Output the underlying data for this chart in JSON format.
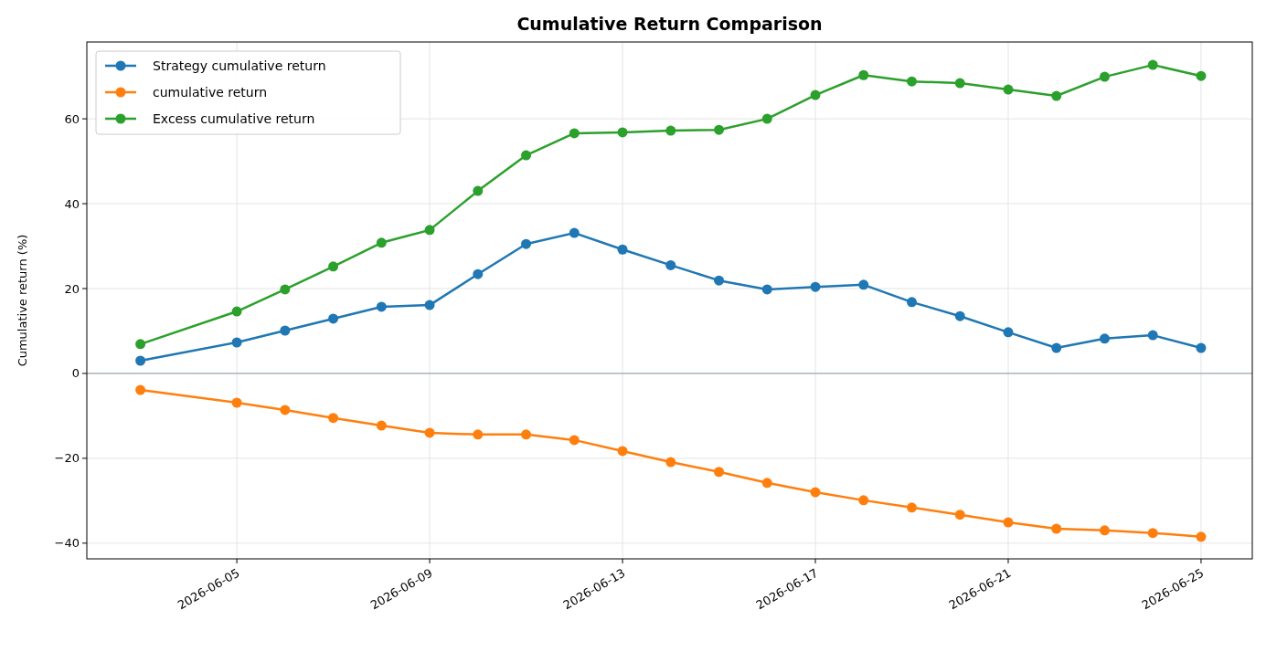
{
  "chart_data": {
    "type": "line",
    "title": "Cumulative Return Comparison",
    "ylabel": "Cumulative return (%)",
    "x": [
      "2026-06-03",
      "2026-06-05",
      "2026-06-06",
      "2026-06-07",
      "2026-06-08",
      "2026-06-09",
      "2026-06-10",
      "2026-06-11",
      "2026-06-12",
      "2026-06-13",
      "2026-06-14",
      "2026-06-15",
      "2026-06-16",
      "2026-06-17",
      "2026-06-18",
      "2026-06-19",
      "2026-06-20",
      "2026-06-21",
      "2026-06-22",
      "2026-06-23",
      "2026-06-24",
      "2026-06-25"
    ],
    "series": [
      {
        "name": "Strategy cumulative return",
        "color": "#1f77b4",
        "values": [
          3.0,
          7.3,
          10.1,
          12.9,
          15.7,
          16.1,
          23.4,
          30.5,
          33.1,
          29.2,
          25.5,
          21.9,
          19.8,
          20.4,
          20.9,
          16.8,
          13.5,
          9.7,
          6.0,
          8.2,
          9.0,
          6.0
        ]
      },
      {
        "name": "cumulative return",
        "color": "#ff7f0e",
        "values": [
          -3.9,
          -6.9,
          -8.6,
          -10.5,
          -12.3,
          -14.0,
          -14.4,
          -14.4,
          -15.7,
          -18.3,
          -20.9,
          -23.2,
          -25.8,
          -28.0,
          -29.9,
          -31.6,
          -33.3,
          -35.1,
          -36.6,
          -37.0,
          -37.6,
          -38.5
        ]
      },
      {
        "name": "Excess cumulative return",
        "color": "#2ca02c",
        "values": [
          6.9,
          14.6,
          19.8,
          25.2,
          30.8,
          33.8,
          43.0,
          51.4,
          56.6,
          56.8,
          57.2,
          57.4,
          60.0,
          65.6,
          70.3,
          68.8,
          68.4,
          66.9,
          65.4,
          69.9,
          72.7,
          70.1
        ]
      }
    ],
    "xlim": [
      "2026-06-01T21:20",
      "2026-06-26T01:30"
    ],
    "xticks": [
      {
        "value": "2026-06-05",
        "label": "2026-06-05"
      },
      {
        "value": "2026-06-09",
        "label": "2026-06-09"
      },
      {
        "value": "2026-06-13",
        "label": "2026-06-13"
      },
      {
        "value": "2026-06-17",
        "label": "2026-06-17"
      },
      {
        "value": "2026-06-21",
        "label": "2026-06-21"
      },
      {
        "value": "2026-06-25",
        "label": "2026-06-25"
      }
    ],
    "ylim": [
      -43.7,
      78.1
    ],
    "yticks": [
      {
        "value": -40,
        "label": "−40"
      },
      {
        "value": -20,
        "label": "−20"
      },
      0,
      20,
      40,
      60
    ],
    "ref_lines": [
      {
        "axis": "y",
        "value": 0,
        "color": "#8a9aa6"
      }
    ],
    "grid": true,
    "legend": "top left",
    "marker": "circle",
    "line_style": "solid"
  }
}
